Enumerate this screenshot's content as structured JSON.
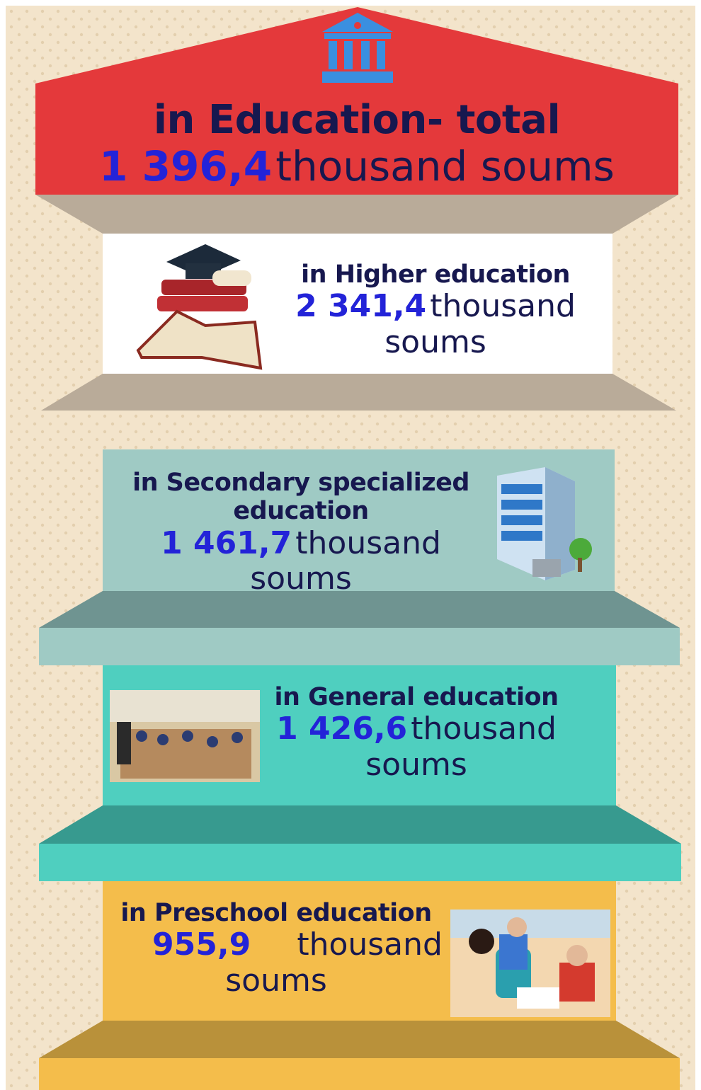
{
  "header": {
    "title": "in Education- total",
    "value": "1 396,4",
    "unit": "thousand soums"
  },
  "sections": [
    {
      "label": "in Higher education",
      "value": "2 341,4",
      "unit": "thousand soums"
    },
    {
      "label": "in Secondary specialized education",
      "value": "1 461,7",
      "unit": "thousand soums"
    },
    {
      "label": "in General education",
      "value": "1 426,6",
      "unit": "thousand soums"
    },
    {
      "label": "in Preschool education",
      "value": "955,9",
      "unit": "thousand soums"
    }
  ]
}
